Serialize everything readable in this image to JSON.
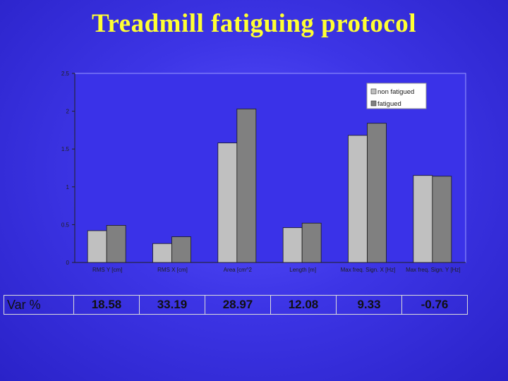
{
  "title": "Treadmill fatiguing protocol",
  "chart_data": {
    "type": "bar",
    "categories": [
      "RMS Y [cm]",
      "RMS X [cm]",
      "Area [cm^2",
      "Length [m]",
      "Max freq. Sign. X [Hz]",
      "Max freq. Sign. Y [Hz]"
    ],
    "series": [
      {
        "name": "non fatigued",
        "values": [
          0.42,
          0.25,
          1.58,
          0.46,
          1.68,
          1.15
        ],
        "color": "#c0c0c0"
      },
      {
        "name": "fatigued",
        "values": [
          0.49,
          0.34,
          2.03,
          0.52,
          1.84,
          1.14
        ],
        "color": "#808080"
      }
    ],
    "yticks": [
      "0",
      "0.5",
      "1",
      "1.5",
      "2",
      "2.5"
    ],
    "ylim": [
      0,
      2.5
    ],
    "legend_position": "top-right",
    "grid": false
  },
  "var_table": {
    "label": "Var %",
    "values": [
      "18.58",
      "33.19",
      "28.97",
      "12.08",
      "9.33",
      "-0.76"
    ]
  }
}
